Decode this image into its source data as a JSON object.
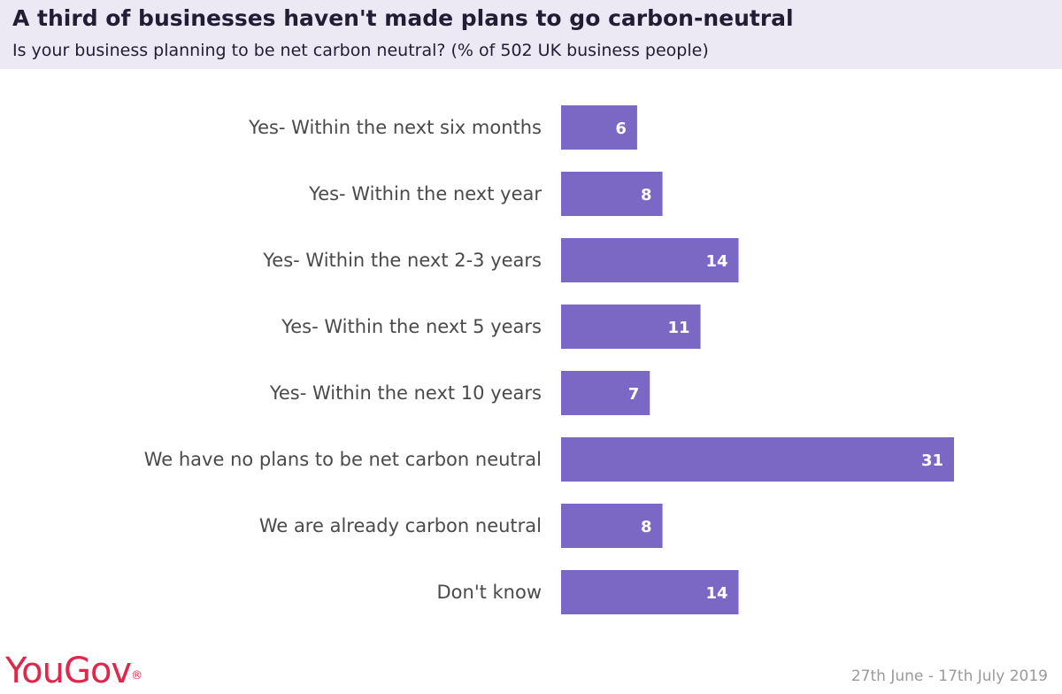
{
  "header": {
    "title": "A third of businesses haven't made plans to go carbon-neutral",
    "subtitle": "Is your business planning to be net carbon neutral? (% of 502 UK business people)"
  },
  "footer": {
    "brand": "YouGov",
    "brand_mark": "®",
    "date_range": "27th June - 17th July 2019"
  },
  "colors": {
    "bar": "#7b68c4",
    "brand": "#e0274a",
    "header_bg": "#ece9f5"
  },
  "chart_data": {
    "type": "bar",
    "orientation": "horizontal",
    "categories": [
      "Yes- Within the next six months",
      "Yes- Within the next year",
      "Yes- Within the next 2-3 years",
      "Yes- Within the next 5 years",
      "Yes- Within the next 10 years",
      "We have no plans to be net carbon neutral",
      "We are already carbon neutral",
      "Don't know"
    ],
    "values": [
      6,
      8,
      14,
      11,
      7,
      31,
      8,
      14
    ],
    "title": "A third of businesses haven't made plans to go carbon-neutral",
    "xlabel": "",
    "ylabel": "",
    "grid": false,
    "data_labels": true
  }
}
